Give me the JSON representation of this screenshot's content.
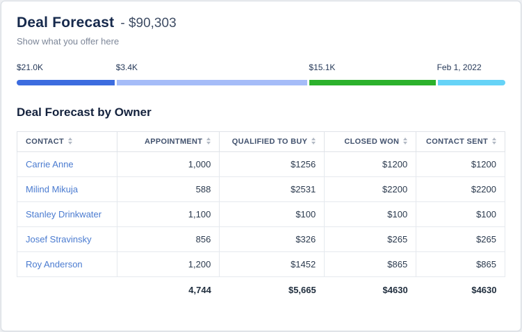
{
  "header": {
    "title": "Deal Forecast",
    "amount": "- $90,303",
    "subtitle": "Show what you offer here"
  },
  "forecast_bar": {
    "milestones": [
      "$21.0K",
      "$3.4K",
      "$15.1K",
      "Feb 1, 2022"
    ],
    "segment_colors": [
      "#3c6cdf",
      "#a5bcf8",
      "#2cb12c",
      "#66d3f7"
    ]
  },
  "owner_table": {
    "title": "Deal Forecast by Owner",
    "columns": [
      "CONTACT",
      "APPOINTMENT",
      "QUALIFIED TO BUY",
      "CLOSED WON",
      "CONTACT SENT"
    ],
    "rows": [
      {
        "contact": "Carrie Anne",
        "appointment": "1,000",
        "qualified_to_buy": "$1256",
        "closed_won": "$1200",
        "contact_sent": "$1200"
      },
      {
        "contact": "Milind Mikuja",
        "appointment": "588",
        "qualified_to_buy": "$2531",
        "closed_won": "$2200",
        "contact_sent": "$2200"
      },
      {
        "contact": "Stanley Drinkwater",
        "appointment": "1,100",
        "qualified_to_buy": "$100",
        "closed_won": "$100",
        "contact_sent": "$100"
      },
      {
        "contact": "Josef Stravinsky",
        "appointment": "856",
        "qualified_to_buy": "$326",
        "closed_won": "$265",
        "contact_sent": "$265"
      },
      {
        "contact": "Roy Anderson",
        "appointment": "1,200",
        "qualified_to_buy": "$1452",
        "closed_won": "$865",
        "contact_sent": "$865"
      }
    ],
    "totals": {
      "appointment": "4,744",
      "qualified_to_buy": "$5,665",
      "closed_won": "$4630",
      "contact_sent": "$4630"
    }
  }
}
